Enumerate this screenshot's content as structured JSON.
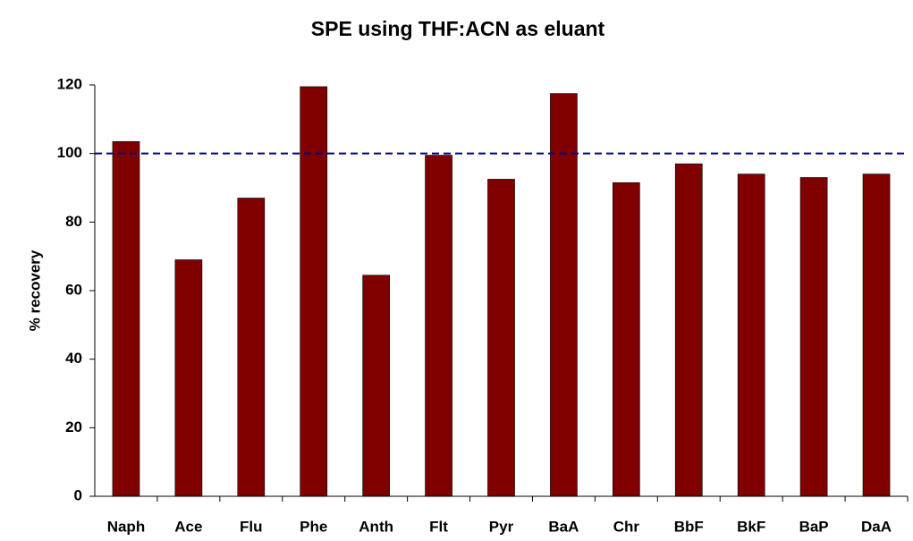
{
  "chart_data": {
    "type": "bar",
    "title": "SPE using THF:ACN as eluant",
    "y_label": "% recovery",
    "categories": [
      "Naph",
      "Ace",
      "Flu",
      "Phe",
      "Anth",
      "Flt",
      "Pyr",
      "BaA",
      "Chr",
      "BbF",
      "BkF",
      "BaP",
      "DaA"
    ],
    "values": [
      103.5,
      69,
      87,
      119.5,
      64.5,
      99.5,
      92.5,
      117.5,
      91.5,
      97,
      94,
      93,
      94
    ],
    "color": "#800000",
    "ylim": [
      0,
      120
    ],
    "yticks": [
      0,
      20,
      40,
      60,
      80,
      100,
      120
    ],
    "reference_line": {
      "value": 100,
      "color": "#000080"
    }
  }
}
